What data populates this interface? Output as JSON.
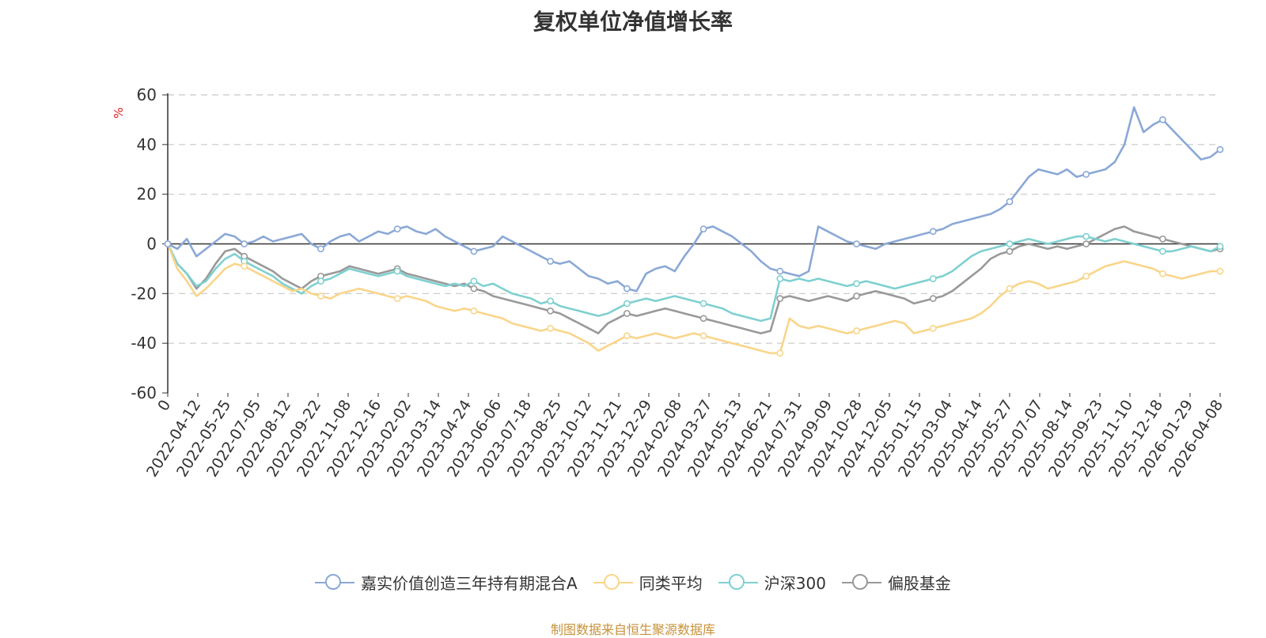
{
  "title": "复权单位净值增长率",
  "source": "制图数据来自恒生聚源数据库",
  "chart_data": {
    "type": "line",
    "title": "复权单位净值增长率",
    "ylabel": "%",
    "ylim": [
      -60,
      60
    ],
    "yticks": [
      60,
      40,
      20,
      0,
      -20,
      -40,
      -60
    ],
    "grid": true,
    "legend_position": "bottom",
    "x_ticks": [
      "0",
      "2022-04-12",
      "2022-05-25",
      "2022-07-05",
      "2022-08-12",
      "2022-09-22",
      "2022-11-08",
      "2022-12-16",
      "2023-02-02",
      "2023-03-14",
      "2023-04-24",
      "2023-06-06",
      "2023-07-18",
      "2023-08-25",
      "2023-10-12",
      "2023-11-21",
      "2023-12-29",
      "2024-02-08",
      "2024-03-27",
      "2024-05-13",
      "2024-06-21",
      "2024-07-31",
      "2024-09-09",
      "2024-10-28",
      "2024-12-05",
      "2025-01-15",
      "2025-03-04",
      "2025-04-14",
      "2025-05-27",
      "2025-07-07",
      "2025-08-14",
      "2025-09-23",
      "2025-11-10",
      "2025-12-18",
      "2026-01-29",
      "2026-04-08"
    ],
    "series": [
      {
        "name": "嘉实价值创造三年持有期混合A",
        "color": "#8aa8d6",
        "values": [
          0,
          -2,
          2,
          -5,
          -2,
          1,
          4,
          3,
          0,
          1,
          3,
          1,
          2,
          3,
          4,
          0,
          -2,
          1,
          3,
          4,
          1,
          3,
          5,
          4,
          6,
          7,
          5,
          4,
          6,
          3,
          1,
          -1,
          -3,
          -2,
          -1,
          3,
          1,
          -1,
          -3,
          -5,
          -7,
          -8,
          -7,
          -10,
          -13,
          -14,
          -16,
          -15,
          -18,
          -19,
          -12,
          -10,
          -9,
          -11,
          -5,
          0,
          6,
          7,
          5,
          3,
          0,
          -3,
          -7,
          -10,
          -11,
          -12,
          -13,
          -11,
          7,
          5,
          3,
          1,
          0,
          -1,
          -2,
          0,
          1,
          2,
          3,
          4,
          5,
          6,
          8,
          9,
          10,
          11,
          12,
          14,
          17,
          22,
          27,
          30,
          29,
          28,
          30,
          27,
          28,
          29,
          30,
          33,
          40,
          55,
          45,
          48,
          50,
          46,
          42,
          38,
          34,
          35,
          38
        ]
      },
      {
        "name": "同类平均",
        "color": "#f9d58a",
        "values": [
          0,
          -10,
          -15,
          -21,
          -18,
          -14,
          -10,
          -8,
          -9,
          -11,
          -13,
          -15,
          -17,
          -19,
          -18,
          -20,
          -21,
          -22,
          -20,
          -19,
          -18,
          -19,
          -20,
          -21,
          -22,
          -21,
          -22,
          -23,
          -25,
          -26,
          -27,
          -26,
          -27,
          -28,
          -29,
          -30,
          -32,
          -33,
          -34,
          -35,
          -34,
          -35,
          -36,
          -38,
          -40,
          -43,
          -41,
          -39,
          -37,
          -38,
          -37,
          -36,
          -37,
          -38,
          -37,
          -36,
          -37,
          -38,
          -39,
          -40,
          -41,
          -42,
          -43,
          -44,
          -44,
          -30,
          -33,
          -34,
          -33,
          -34,
          -35,
          -36,
          -35,
          -34,
          -33,
          -32,
          -31,
          -32,
          -36,
          -35,
          -34,
          -33,
          -32,
          -31,
          -30,
          -28,
          -25,
          -21,
          -18,
          -16,
          -15,
          -16,
          -18,
          -17,
          -16,
          -15,
          -13,
          -11,
          -9,
          -8,
          -7,
          -8,
          -9,
          -10,
          -12,
          -13,
          -14,
          -13,
          -12,
          -11,
          -11
        ]
      },
      {
        "name": "沪深300",
        "color": "#7fd0d0",
        "values": [
          0,
          -8,
          -12,
          -17,
          -15,
          -10,
          -6,
          -4,
          -7,
          -9,
          -11,
          -13,
          -16,
          -18,
          -20,
          -17,
          -15,
          -14,
          -12,
          -10,
          -11,
          -12,
          -13,
          -12,
          -11,
          -13,
          -14,
          -15,
          -16,
          -17,
          -16,
          -17,
          -15,
          -17,
          -16,
          -18,
          -20,
          -21,
          -22,
          -24,
          -23,
          -25,
          -26,
          -27,
          -28,
          -29,
          -28,
          -26,
          -24,
          -23,
          -22,
          -23,
          -22,
          -21,
          -22,
          -23,
          -24,
          -25,
          -26,
          -28,
          -29,
          -30,
          -31,
          -30,
          -14,
          -15,
          -14,
          -15,
          -14,
          -15,
          -16,
          -17,
          -16,
          -15,
          -16,
          -17,
          -18,
          -17,
          -16,
          -15,
          -14,
          -13,
          -11,
          -8,
          -5,
          -3,
          -2,
          -1,
          0,
          1,
          2,
          1,
          0,
          1,
          2,
          3,
          3,
          2,
          1,
          2,
          1,
          0,
          -1,
          -2,
          -3,
          -3,
          -2,
          -1,
          -2,
          -3,
          -1
        ]
      },
      {
        "name": "偏股基金",
        "color": "#999999",
        "values": [
          0,
          -8,
          -12,
          -18,
          -14,
          -8,
          -3,
          -2,
          -5,
          -7,
          -9,
          -11,
          -14,
          -16,
          -18,
          -15,
          -13,
          -12,
          -11,
          -9,
          -10,
          -11,
          -12,
          -11,
          -10,
          -12,
          -13,
          -14,
          -15,
          -16,
          -17,
          -16,
          -18,
          -19,
          -21,
          -22,
          -23,
          -24,
          -25,
          -26,
          -27,
          -28,
          -30,
          -32,
          -34,
          -36,
          -32,
          -30,
          -28,
          -29,
          -28,
          -27,
          -26,
          -27,
          -28,
          -29,
          -30,
          -31,
          -32,
          -33,
          -34,
          -35,
          -36,
          -35,
          -22,
          -21,
          -22,
          -23,
          -22,
          -21,
          -22,
          -23,
          -21,
          -20,
          -19,
          -20,
          -21,
          -22,
          -24,
          -23,
          -22,
          -21,
          -19,
          -16,
          -13,
          -10,
          -6,
          -4,
          -3,
          -1,
          0,
          -1,
          -2,
          -1,
          -2,
          -1,
          0,
          2,
          4,
          6,
          7,
          5,
          4,
          3,
          2,
          1,
          0,
          -1,
          -2,
          -3,
          -2
        ]
      }
    ]
  }
}
